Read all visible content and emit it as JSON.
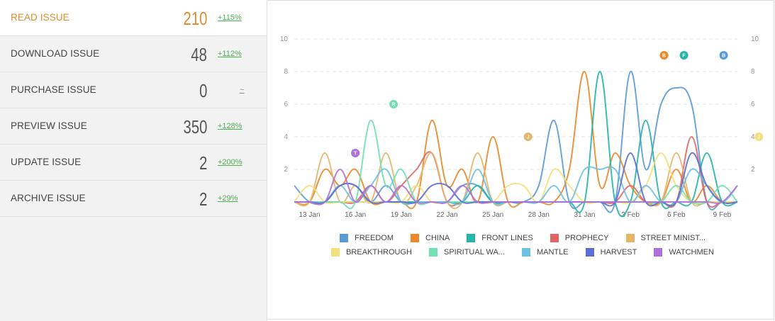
{
  "metrics": [
    {
      "label": "READ ISSUE",
      "value": "210",
      "change": "+115%",
      "active": true
    },
    {
      "label": "DOWNLOAD ISSUE",
      "value": "48",
      "change": "+112%",
      "active": false
    },
    {
      "label": "PURCHASE ISSUE",
      "value": "0",
      "change": "~",
      "active": false
    },
    {
      "label": "PREVIEW ISSUE",
      "value": "350",
      "change": "+128%",
      "active": false
    },
    {
      "label": "UPDATE ISSUE",
      "value": "2",
      "change": "+200%",
      "active": false
    },
    {
      "label": "ARCHIVE ISSUE",
      "value": "2",
      "change": "+29%",
      "active": false
    }
  ],
  "chart_data": {
    "type": "line",
    "title": "",
    "xlabel": "",
    "ylabel": "",
    "ylim": [
      0,
      10
    ],
    "yticks": [
      2,
      4,
      6,
      8,
      10
    ],
    "x_range": [
      12,
      41
    ],
    "x_ticks": [
      {
        "x": 13,
        "label": "13 Jan"
      },
      {
        "x": 16,
        "label": "16 Jan"
      },
      {
        "x": 19,
        "label": "19 Jan"
      },
      {
        "x": 22,
        "label": "22 Jan"
      },
      {
        "x": 25,
        "label": "25 Jan"
      },
      {
        "x": 28,
        "label": "28 Jan"
      },
      {
        "x": 31,
        "label": "31 Jan"
      },
      {
        "x": 34,
        "label": "3 Feb"
      },
      {
        "x": 37,
        "label": "6 Feb"
      },
      {
        "x": 40,
        "label": "9 Feb"
      }
    ],
    "series": [
      {
        "name": "FREEDOM",
        "color": "#5b9bd5",
        "x": [
          12,
          13,
          14,
          15,
          16,
          17,
          18,
          19,
          20,
          21,
          22,
          23,
          24,
          25,
          26,
          27,
          28,
          29,
          30,
          31,
          32,
          33,
          34,
          35,
          36,
          37,
          38,
          39,
          40,
          41
        ],
        "y": [
          1,
          0,
          0,
          1,
          1,
          0,
          1,
          0,
          0,
          0,
          0,
          1,
          1,
          0,
          0,
          0,
          1,
          5,
          0,
          0,
          0,
          0,
          8,
          2,
          6,
          7,
          6,
          0,
          0,
          0
        ]
      },
      {
        "name": "CHINA",
        "color": "#e8892a",
        "x": [
          12,
          13,
          14,
          15,
          16,
          17,
          18,
          19,
          20,
          21,
          22,
          23,
          24,
          25,
          26,
          27,
          28,
          29,
          30,
          31,
          32,
          33,
          34,
          35,
          36,
          37,
          38,
          39,
          40,
          41
        ],
        "y": [
          0,
          0,
          2,
          1,
          2,
          0,
          0,
          0,
          0,
          5,
          1,
          2,
          0,
          4,
          0,
          0,
          0,
          0,
          2,
          8,
          1,
          3,
          1,
          0,
          0,
          2,
          0,
          1,
          0,
          0
        ]
      },
      {
        "name": "FRONT LINES",
        "color": "#26b5a8",
        "x": [
          12,
          13,
          14,
          15,
          16,
          17,
          18,
          19,
          20,
          21,
          22,
          23,
          24,
          25,
          26,
          27,
          28,
          29,
          30,
          31,
          32,
          33,
          34,
          35,
          36,
          37,
          38,
          39,
          40,
          41
        ],
        "y": [
          0,
          0,
          0,
          0,
          0,
          0,
          0,
          0,
          0,
          0,
          0,
          0,
          1,
          0,
          0,
          0,
          0,
          0,
          0,
          0,
          8,
          0,
          0,
          5,
          0,
          0,
          0,
          3,
          0,
          0
        ]
      },
      {
        "name": "PROPHECY",
        "color": "#e06666",
        "x": [
          12,
          13,
          14,
          15,
          16,
          17,
          18,
          19,
          20,
          21,
          22,
          23,
          24,
          25,
          26,
          27,
          28,
          29,
          30,
          31,
          32,
          33,
          34,
          35,
          36,
          37,
          38,
          39,
          40,
          41
        ],
        "y": [
          0,
          0,
          0,
          0,
          0,
          1,
          0,
          1,
          2,
          3,
          0,
          0,
          0,
          0,
          0,
          0,
          0,
          0,
          0,
          0,
          0,
          0,
          1,
          0,
          0,
          0,
          4,
          0,
          0,
          0
        ]
      },
      {
        "name": "STREET MINIST...",
        "color": "#e6b56c",
        "x": [
          12,
          13,
          14,
          15,
          16,
          17,
          18,
          19,
          20,
          21,
          22,
          23,
          24,
          25,
          26,
          27,
          28,
          29,
          30,
          31,
          32,
          33,
          34,
          35,
          36,
          37,
          38,
          39,
          40,
          41
        ],
        "y": [
          0,
          0,
          3,
          0,
          1,
          0,
          3,
          0,
          1,
          3,
          0,
          0,
          3,
          0,
          0,
          0,
          0,
          0,
          0,
          0,
          0,
          0,
          0,
          0,
          0,
          3,
          0,
          0,
          0,
          0
        ]
      },
      {
        "name": "BREAKTHROUGH",
        "color": "#f2e07c",
        "x": [
          12,
          13,
          14,
          15,
          16,
          17,
          18,
          19,
          20,
          21,
          22,
          23,
          24,
          25,
          26,
          27,
          28,
          29,
          30,
          31,
          32,
          33,
          34,
          35,
          36,
          37,
          38,
          39,
          40,
          41
        ],
        "y": [
          0,
          1,
          0,
          0,
          0,
          0,
          0,
          0,
          1,
          0,
          0,
          0,
          0,
          0,
          1,
          1,
          0,
          2,
          1,
          0,
          0,
          0,
          0,
          1,
          3,
          1,
          0,
          0,
          0,
          0
        ]
      },
      {
        "name": "SPIRITUAL WA...",
        "color": "#70e0b0",
        "x": [
          12,
          13,
          14,
          15,
          16,
          17,
          18,
          19,
          20,
          21,
          22,
          23,
          24,
          25,
          26,
          27,
          28,
          29,
          30,
          31,
          32,
          33,
          34,
          35,
          36,
          37,
          38,
          39,
          40,
          41
        ],
        "y": [
          0,
          0,
          0,
          0,
          0,
          5,
          1,
          2,
          0,
          0,
          0,
          0,
          0,
          0,
          0,
          0,
          0,
          0,
          0,
          0,
          0,
          0,
          0,
          0,
          0,
          1,
          0,
          0,
          1,
          0
        ]
      },
      {
        "name": "MANTLE",
        "color": "#6ec1e4",
        "x": [
          12,
          13,
          14,
          15,
          16,
          17,
          18,
          19,
          20,
          21,
          22,
          23,
          24,
          25,
          26,
          27,
          28,
          29,
          30,
          31,
          32,
          33,
          34,
          35,
          36,
          37,
          38,
          39,
          40,
          41
        ],
        "y": [
          0,
          0,
          0,
          1,
          0,
          1,
          2,
          0,
          0,
          0,
          0,
          0,
          2,
          0,
          0,
          0,
          0,
          1,
          0,
          2,
          2,
          2,
          0,
          1,
          0,
          0,
          2,
          1,
          0,
          1
        ]
      },
      {
        "name": "HARVEST",
        "color": "#5a6fd6",
        "x": [
          12,
          13,
          14,
          15,
          16,
          17,
          18,
          19,
          20,
          21,
          22,
          23,
          24,
          25,
          26,
          27,
          28,
          29,
          30,
          31,
          32,
          33,
          34,
          35,
          36,
          37,
          38,
          39,
          40,
          41
        ],
        "y": [
          0,
          0,
          0,
          1,
          1,
          0,
          0,
          0,
          0,
          1,
          1,
          0,
          0,
          0,
          0,
          0,
          0,
          0,
          0,
          0,
          0,
          0,
          3,
          0,
          0,
          0,
          3,
          1,
          0,
          0
        ]
      },
      {
        "name": "WATCHMEN",
        "color": "#b070d8",
        "x": [
          12,
          13,
          14,
          15,
          16,
          17,
          18,
          19,
          20,
          21,
          22,
          23,
          24,
          25,
          26,
          27,
          28,
          29,
          30,
          31,
          32,
          33,
          34,
          35,
          36,
          37,
          38,
          39,
          40,
          41
        ],
        "y": [
          0,
          0,
          0,
          2,
          0,
          1,
          0,
          1,
          0,
          0,
          0,
          1,
          0,
          0,
          0,
          0,
          0,
          0,
          0,
          0,
          0,
          0,
          0,
          0,
          0,
          0,
          0,
          0,
          0,
          1
        ]
      }
    ],
    "annotations": [
      {
        "letter": "T",
        "x": 16,
        "y": 3.0,
        "color": "#b070d8"
      },
      {
        "letter": "R",
        "x": 18.5,
        "y": 6.0,
        "color": "#70e0b0"
      },
      {
        "letter": "J",
        "x": 27.3,
        "y": 4.0,
        "color": "#e6b56c"
      },
      {
        "letter": "B",
        "x": 36.2,
        "y": 9.0,
        "color": "#e8892a"
      },
      {
        "letter": "F",
        "x": 37.5,
        "y": 9.0,
        "color": "#26b5a8"
      },
      {
        "letter": "B",
        "x": 40.1,
        "y": 9.0,
        "color": "#5b9bd5"
      },
      {
        "letter": "J",
        "x": 42.4,
        "y": 4.0,
        "color": "#f2e07c"
      }
    ]
  }
}
